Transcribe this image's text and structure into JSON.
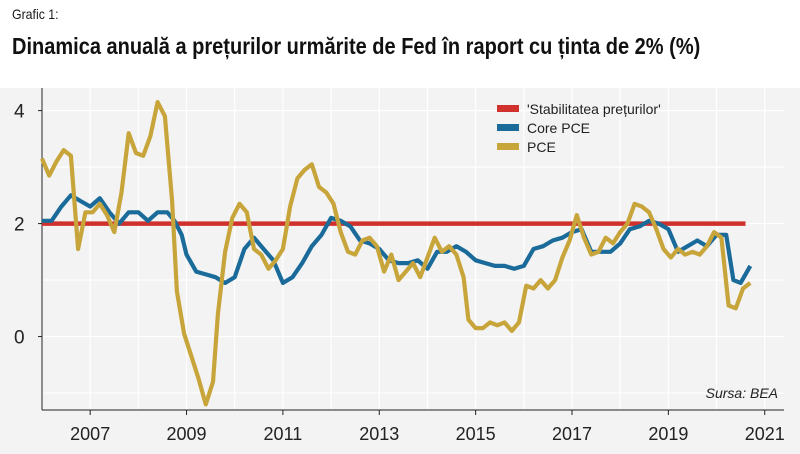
{
  "caption": "Grafic 1:",
  "title": "Dinamica anuală  a prețurilor urmărite de Fed în raport cu ținta de 2% (%)",
  "source": "Sursa: BEA",
  "colors": {
    "target": "#d0312d",
    "core": "#1a6b9a",
    "pce": "#c8a53a",
    "background": "#f3f3f3",
    "grid": "#ffffff"
  },
  "chart_data": {
    "type": "line",
    "title": "Dinamica anuală  a prețurilor urmărite de Fed în raport cu ținta de 2% (%)",
    "xlabel": "",
    "ylabel": "",
    "xlim": [
      2006,
      2021.4
    ],
    "ylim": [
      -1.3,
      4.4
    ],
    "x_ticks": [
      "2007",
      "2009",
      "2011",
      "2013",
      "2015",
      "2017",
      "2019",
      "2021"
    ],
    "y_ticks": [
      "0",
      "2",
      "4"
    ],
    "grid": true,
    "legend_position": "top-right",
    "series": [
      {
        "name": "'Stabilitatea prețurilor'",
        "color": "#d0312d",
        "points": [
          [
            2006.0,
            2.0
          ],
          [
            2020.6,
            2.0
          ]
        ]
      },
      {
        "name": "Core PCE",
        "color": "#1a6b9a",
        "points": [
          [
            2006.0,
            2.05
          ],
          [
            2006.2,
            2.05
          ],
          [
            2006.4,
            2.3
          ],
          [
            2006.6,
            2.5
          ],
          [
            2006.8,
            2.4
          ],
          [
            2007.0,
            2.3
          ],
          [
            2007.2,
            2.45
          ],
          [
            2007.4,
            2.2
          ],
          [
            2007.6,
            2.0
          ],
          [
            2007.8,
            2.2
          ],
          [
            2008.0,
            2.2
          ],
          [
            2008.2,
            2.05
          ],
          [
            2008.4,
            2.2
          ],
          [
            2008.6,
            2.2
          ],
          [
            2008.75,
            2.05
          ],
          [
            2008.9,
            1.8
          ],
          [
            2009.0,
            1.45
          ],
          [
            2009.2,
            1.15
          ],
          [
            2009.4,
            1.1
          ],
          [
            2009.6,
            1.05
          ],
          [
            2009.8,
            0.95
          ],
          [
            2010.0,
            1.05
          ],
          [
            2010.2,
            1.55
          ],
          [
            2010.4,
            1.75
          ],
          [
            2010.6,
            1.55
          ],
          [
            2010.8,
            1.35
          ],
          [
            2011.0,
            0.95
          ],
          [
            2011.2,
            1.05
          ],
          [
            2011.4,
            1.3
          ],
          [
            2011.6,
            1.6
          ],
          [
            2011.8,
            1.8
          ],
          [
            2012.0,
            2.1
          ],
          [
            2012.2,
            2.05
          ],
          [
            2012.4,
            1.95
          ],
          [
            2012.6,
            1.7
          ],
          [
            2012.8,
            1.65
          ],
          [
            2013.0,
            1.55
          ],
          [
            2013.2,
            1.35
          ],
          [
            2013.4,
            1.3
          ],
          [
            2013.6,
            1.3
          ],
          [
            2013.8,
            1.35
          ],
          [
            2014.0,
            1.2
          ],
          [
            2014.2,
            1.5
          ],
          [
            2014.4,
            1.5
          ],
          [
            2014.6,
            1.6
          ],
          [
            2014.8,
            1.5
          ],
          [
            2015.0,
            1.35
          ],
          [
            2015.2,
            1.3
          ],
          [
            2015.4,
            1.25
          ],
          [
            2015.6,
            1.25
          ],
          [
            2015.8,
            1.2
          ],
          [
            2016.0,
            1.25
          ],
          [
            2016.2,
            1.55
          ],
          [
            2016.4,
            1.6
          ],
          [
            2016.6,
            1.7
          ],
          [
            2016.8,
            1.75
          ],
          [
            2017.0,
            1.85
          ],
          [
            2017.2,
            1.9
          ],
          [
            2017.4,
            1.5
          ],
          [
            2017.6,
            1.5
          ],
          [
            2017.8,
            1.5
          ],
          [
            2018.0,
            1.65
          ],
          [
            2018.2,
            1.9
          ],
          [
            2018.4,
            1.95
          ],
          [
            2018.6,
            2.05
          ],
          [
            2018.8,
            2.0
          ],
          [
            2019.0,
            1.9
          ],
          [
            2019.2,
            1.5
          ],
          [
            2019.4,
            1.6
          ],
          [
            2019.6,
            1.7
          ],
          [
            2019.8,
            1.6
          ],
          [
            2020.0,
            1.8
          ],
          [
            2020.2,
            1.8
          ],
          [
            2020.35,
            1.0
          ],
          [
            2020.5,
            0.95
          ],
          [
            2020.7,
            1.25
          ]
        ]
      },
      {
        "name": "PCE",
        "color": "#c8a53a",
        "points": [
          [
            2006.0,
            3.15
          ],
          [
            2006.15,
            2.85
          ],
          [
            2006.3,
            3.1
          ],
          [
            2006.45,
            3.3
          ],
          [
            2006.6,
            3.2
          ],
          [
            2006.75,
            1.55
          ],
          [
            2006.9,
            2.2
          ],
          [
            2007.05,
            2.2
          ],
          [
            2007.2,
            2.35
          ],
          [
            2007.35,
            2.15
          ],
          [
            2007.5,
            1.85
          ],
          [
            2007.65,
            2.55
          ],
          [
            2007.8,
            3.6
          ],
          [
            2007.95,
            3.25
          ],
          [
            2008.1,
            3.2
          ],
          [
            2008.25,
            3.55
          ],
          [
            2008.4,
            4.15
          ],
          [
            2008.55,
            3.9
          ],
          [
            2008.7,
            2.4
          ],
          [
            2008.8,
            0.8
          ],
          [
            2008.95,
            0.05
          ],
          [
            2009.1,
            -0.35
          ],
          [
            2009.25,
            -0.75
          ],
          [
            2009.4,
            -1.2
          ],
          [
            2009.55,
            -0.8
          ],
          [
            2009.65,
            0.4
          ],
          [
            2009.8,
            1.5
          ],
          [
            2009.95,
            2.1
          ],
          [
            2010.1,
            2.35
          ],
          [
            2010.25,
            2.2
          ],
          [
            2010.4,
            1.55
          ],
          [
            2010.55,
            1.45
          ],
          [
            2010.7,
            1.2
          ],
          [
            2010.85,
            1.35
          ],
          [
            2011.0,
            1.55
          ],
          [
            2011.15,
            2.3
          ],
          [
            2011.3,
            2.8
          ],
          [
            2011.45,
            2.95
          ],
          [
            2011.6,
            3.05
          ],
          [
            2011.75,
            2.65
          ],
          [
            2011.9,
            2.55
          ],
          [
            2012.05,
            2.35
          ],
          [
            2012.2,
            1.85
          ],
          [
            2012.35,
            1.5
          ],
          [
            2012.5,
            1.45
          ],
          [
            2012.65,
            1.7
          ],
          [
            2012.8,
            1.75
          ],
          [
            2012.95,
            1.6
          ],
          [
            2013.1,
            1.15
          ],
          [
            2013.25,
            1.45
          ],
          [
            2013.4,
            1.0
          ],
          [
            2013.55,
            1.15
          ],
          [
            2013.7,
            1.3
          ],
          [
            2013.85,
            1.05
          ],
          [
            2014.0,
            1.4
          ],
          [
            2014.15,
            1.75
          ],
          [
            2014.3,
            1.5
          ],
          [
            2014.45,
            1.6
          ],
          [
            2014.6,
            1.45
          ],
          [
            2014.75,
            1.05
          ],
          [
            2014.85,
            0.3
          ],
          [
            2015.0,
            0.15
          ],
          [
            2015.15,
            0.15
          ],
          [
            2015.3,
            0.25
          ],
          [
            2015.45,
            0.2
          ],
          [
            2015.6,
            0.25
          ],
          [
            2015.75,
            0.1
          ],
          [
            2015.9,
            0.25
          ],
          [
            2016.05,
            0.9
          ],
          [
            2016.2,
            0.85
          ],
          [
            2016.35,
            1.0
          ],
          [
            2016.5,
            0.85
          ],
          [
            2016.65,
            1.0
          ],
          [
            2016.8,
            1.4
          ],
          [
            2016.95,
            1.7
          ],
          [
            2017.1,
            2.15
          ],
          [
            2017.25,
            1.75
          ],
          [
            2017.4,
            1.45
          ],
          [
            2017.55,
            1.5
          ],
          [
            2017.7,
            1.75
          ],
          [
            2017.85,
            1.65
          ],
          [
            2018.0,
            1.85
          ],
          [
            2018.15,
            2.0
          ],
          [
            2018.3,
            2.35
          ],
          [
            2018.45,
            2.3
          ],
          [
            2018.6,
            2.2
          ],
          [
            2018.75,
            1.9
          ],
          [
            2018.9,
            1.55
          ],
          [
            2019.05,
            1.4
          ],
          [
            2019.2,
            1.55
          ],
          [
            2019.35,
            1.45
          ],
          [
            2019.5,
            1.5
          ],
          [
            2019.65,
            1.45
          ],
          [
            2019.8,
            1.6
          ],
          [
            2019.95,
            1.85
          ],
          [
            2020.1,
            1.75
          ],
          [
            2020.25,
            0.55
          ],
          [
            2020.4,
            0.5
          ],
          [
            2020.55,
            0.85
          ],
          [
            2020.7,
            0.95
          ]
        ]
      }
    ]
  }
}
